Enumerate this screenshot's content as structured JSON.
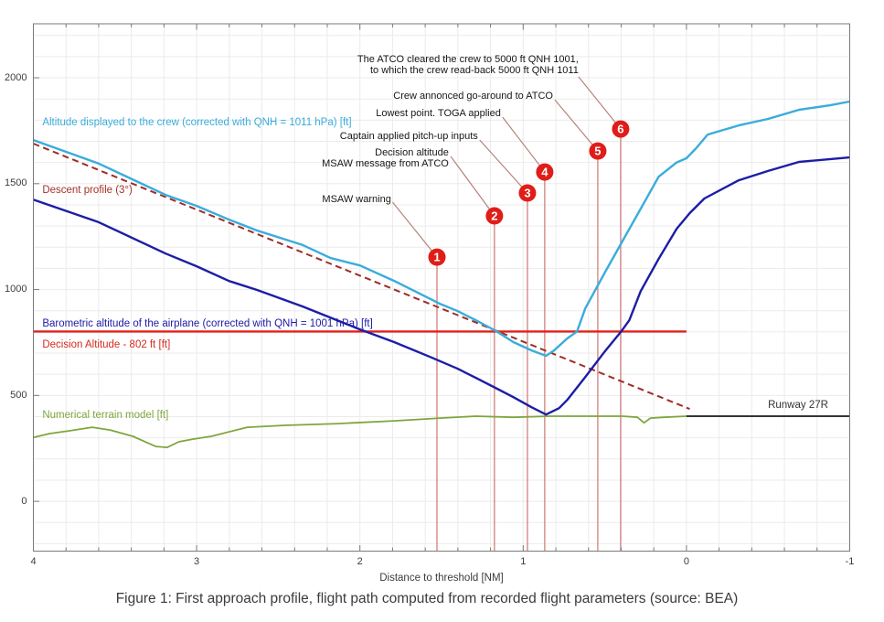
{
  "figure": {
    "caption": "Figure 1: First approach profile, flight path computed from recorded flight parameters (source: BEA)"
  },
  "chart_data": {
    "type": "line",
    "title": "",
    "xlabel": "Distance to threshold [NM]",
    "ylabel": "",
    "x_range": [
      4,
      -1
    ],
    "y_range": [
      -235,
      2255
    ],
    "x_ticks": [
      4,
      3,
      2,
      1,
      0,
      -1
    ],
    "y_ticks": [
      0,
      500,
      1000,
      1500,
      2000
    ],
    "x_minor_step": 0.2,
    "y_minor_step": 100,
    "grid": true,
    "grid_color": "#ebebeb",
    "axis_color": "#7a7a7a",
    "tick_label_color": "#3c3c3c",
    "marker_color": "#e01d18",
    "marker_text_color": "#ffffff",
    "event_line_color": "#cf7672",
    "leader_color": "#b5837a",
    "series": [
      {
        "id": "decision_altitude",
        "label": "Decision Altitude - 802 ft [ft]",
        "color": "#e0201c",
        "label_color": "#d42a20",
        "width": 2.4,
        "dash": null,
        "label_pos": {
          "d": 3.945,
          "alt": 734,
          "align": "left"
        },
        "points": [
          [
            4.0,
            802
          ],
          [
            0.0,
            802
          ]
        ]
      },
      {
        "id": "descent_profile",
        "label": "Descent profile (3°)",
        "color": "#9e2d26",
        "label_color": "#a63228",
        "width": 2.0,
        "dash": "7 4.5",
        "label_pos": {
          "d": 3.945,
          "alt": 1464,
          "align": "left"
        },
        "points": [
          [
            4.0,
            1689
          ],
          [
            -0.02,
            436
          ]
        ]
      },
      {
        "id": "terrain",
        "label": "Numerical terrain model [ft]",
        "color": "#7fa63e",
        "label_color": "#7fa63e",
        "width": 1.8,
        "dash": null,
        "label_pos": {
          "d": 3.945,
          "alt": 402,
          "align": "left"
        },
        "points": [
          [
            4.0,
            302
          ],
          [
            3.9,
            320
          ],
          [
            3.78,
            333
          ],
          [
            3.64,
            350
          ],
          [
            3.53,
            337
          ],
          [
            3.39,
            307
          ],
          [
            3.3,
            276
          ],
          [
            3.25,
            259
          ],
          [
            3.18,
            255
          ],
          [
            3.11,
            281
          ],
          [
            3.02,
            294
          ],
          [
            2.91,
            307
          ],
          [
            2.69,
            350
          ],
          [
            2.46,
            359
          ],
          [
            2.13,
            367
          ],
          [
            1.79,
            380
          ],
          [
            1.51,
            393
          ],
          [
            1.29,
            402
          ],
          [
            1.06,
            397
          ],
          [
            0.84,
            402
          ],
          [
            0.62,
            402
          ],
          [
            0.39,
            402
          ],
          [
            0.3,
            397
          ],
          [
            0.26,
            371
          ],
          [
            0.22,
            393
          ],
          [
            0.14,
            397
          ],
          [
            0.0,
            402
          ]
        ]
      },
      {
        "id": "runway",
        "label": "Runway 27R",
        "color": "#1a1a1a",
        "label_color": "#333333",
        "width": 1.8,
        "dash": null,
        "label_pos": {
          "d": -0.868,
          "alt": 449,
          "align": "right"
        },
        "points": [
          [
            0.0,
            402
          ],
          [
            -1.0,
            402
          ]
        ]
      },
      {
        "id": "barometric_altitude",
        "label": "Barometric altitude of the airplane (corrected with QNH = 1001 hPa) [ft]",
        "color": "#1d1da5",
        "label_color": "#1b1ba8",
        "width": 2.4,
        "dash": null,
        "label_pos": {
          "d": 3.945,
          "alt": 836,
          "align": "left"
        },
        "points": [
          [
            4.0,
            1425
          ],
          [
            3.6,
            1318
          ],
          [
            3.19,
            1170
          ],
          [
            3.0,
            1110
          ],
          [
            2.8,
            1040
          ],
          [
            2.63,
            998
          ],
          [
            2.35,
            920
          ],
          [
            2.0,
            812
          ],
          [
            1.79,
            752
          ],
          [
            1.57,
            682
          ],
          [
            1.4,
            626
          ],
          [
            1.29,
            583
          ],
          [
            1.17,
            536
          ],
          [
            1.06,
            492
          ],
          [
            0.95,
            445
          ],
          [
            0.86,
            410
          ],
          [
            0.78,
            440
          ],
          [
            0.73,
            479
          ],
          [
            0.62,
            587
          ],
          [
            0.5,
            708
          ],
          [
            0.4,
            802
          ],
          [
            0.35,
            855
          ],
          [
            0.28,
            993
          ],
          [
            0.17,
            1145
          ],
          [
            0.06,
            1287
          ],
          [
            -0.02,
            1361
          ],
          [
            -0.11,
            1430
          ],
          [
            -0.32,
            1516
          ],
          [
            -0.5,
            1560
          ],
          [
            -0.69,
            1603
          ],
          [
            -1.0,
            1624
          ]
        ]
      },
      {
        "id": "displayed_altitude",
        "label": "Altitude displayed to the crew (corrected with QNH = 1011 hPa) [ft]",
        "color": "#3aacdb",
        "label_color": "#3aacdb",
        "width": 2.4,
        "dash": null,
        "label_pos": {
          "d": 3.945,
          "alt": 1784,
          "align": "left"
        },
        "points": [
          [
            4.0,
            1706
          ],
          [
            3.6,
            1595
          ],
          [
            3.19,
            1447
          ],
          [
            3.0,
            1395
          ],
          [
            2.8,
            1330
          ],
          [
            2.63,
            1279
          ],
          [
            2.35,
            1210
          ],
          [
            2.18,
            1149
          ],
          [
            2.0,
            1114
          ],
          [
            1.79,
            1041
          ],
          [
            1.51,
            933
          ],
          [
            1.4,
            898
          ],
          [
            1.29,
            855
          ],
          [
            1.17,
            806
          ],
          [
            1.06,
            752
          ],
          [
            0.95,
            713
          ],
          [
            0.86,
            687
          ],
          [
            0.81,
            713
          ],
          [
            0.73,
            769
          ],
          [
            0.67,
            802
          ],
          [
            0.62,
            911
          ],
          [
            0.5,
            1080
          ],
          [
            0.39,
            1231
          ],
          [
            0.28,
            1382
          ],
          [
            0.17,
            1533
          ],
          [
            0.06,
            1600
          ],
          [
            0.0,
            1620
          ],
          [
            -0.06,
            1668
          ],
          [
            -0.13,
            1732
          ],
          [
            -0.32,
            1775
          ],
          [
            -0.5,
            1806
          ],
          [
            -0.69,
            1849
          ],
          [
            -0.88,
            1870
          ],
          [
            -1.0,
            1888
          ]
        ]
      }
    ],
    "events": [
      {
        "n": "1",
        "d": 1.528,
        "circle_alt": 1153,
        "lines": [
          "MSAW warning"
        ],
        "text_pos": {
          "d": 1.809,
          "alt": 1426
        },
        "leader_from": {
          "d": 1.8,
          "alt": 1413
        }
      },
      {
        "n": "2",
        "d": 1.176,
        "circle_alt": 1348,
        "lines": [
          "Decision altitude",
          "MSAW message from ATCO"
        ],
        "text_pos": {
          "d": 1.456,
          "alt": 1620
        },
        "leader_from": {
          "d": 1.444,
          "alt": 1629
        }
      },
      {
        "n": "3",
        "d": 0.974,
        "circle_alt": 1456,
        "lines": [
          "Captain applied pitch-up inputs"
        ],
        "text_pos": {
          "d": 1.277,
          "alt": 1723
        },
        "leader_from": {
          "d": 1.266,
          "alt": 1706
        }
      },
      {
        "n": "4",
        "d": 0.868,
        "circle_alt": 1555,
        "lines": [
          "Lowest point. TOGA applied"
        ],
        "text_pos": {
          "d": 1.137,
          "alt": 1831
        },
        "leader_from": {
          "d": 1.126,
          "alt": 1814
        }
      },
      {
        "n": "5",
        "d": 0.543,
        "circle_alt": 1654,
        "lines": [
          "Crew annonced go-around to ATCO"
        ],
        "text_pos": {
          "d": 0.817,
          "alt": 1914
        },
        "leader_from": {
          "d": 0.806,
          "alt": 1896
        }
      },
      {
        "n": "6",
        "d": 0.403,
        "circle_alt": 1758,
        "lines": [
          "The ATCO cleared the crew to 5000 ft QNH 1001,",
          "to which the crew read-back 5000 ft QNH 1011"
        ],
        "text_pos": {
          "d": 0.661,
          "alt": 2061
        },
        "leader_from": {
          "d": 0.661,
          "alt": 2005
        }
      }
    ]
  }
}
